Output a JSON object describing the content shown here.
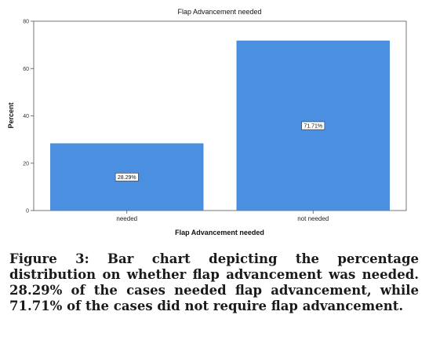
{
  "chart_data": {
    "type": "bar",
    "title": "Flap Advancement needed",
    "xlabel": "Flap Advancement needed",
    "ylabel": "Percent",
    "categories": [
      "needed",
      "not needed"
    ],
    "values": [
      28.29,
      71.71
    ],
    "data_labels": [
      "28.29%",
      "71.71%"
    ],
    "ylim": [
      0,
      80
    ],
    "yticks": [
      0,
      20,
      40,
      60,
      80
    ],
    "ytick_labels": [
      "0",
      "20",
      "40",
      "60",
      "80"
    ],
    "grid": false,
    "legend": "none",
    "bar_color": "#4a8fe0"
  },
  "caption": {
    "text": "Figure 3: Bar chart depicting the percentage distribution on whether flap advancement was needed. 28.29% of the cases needed flap advancement, while 71.71% of the cases did not require flap advancement."
  }
}
